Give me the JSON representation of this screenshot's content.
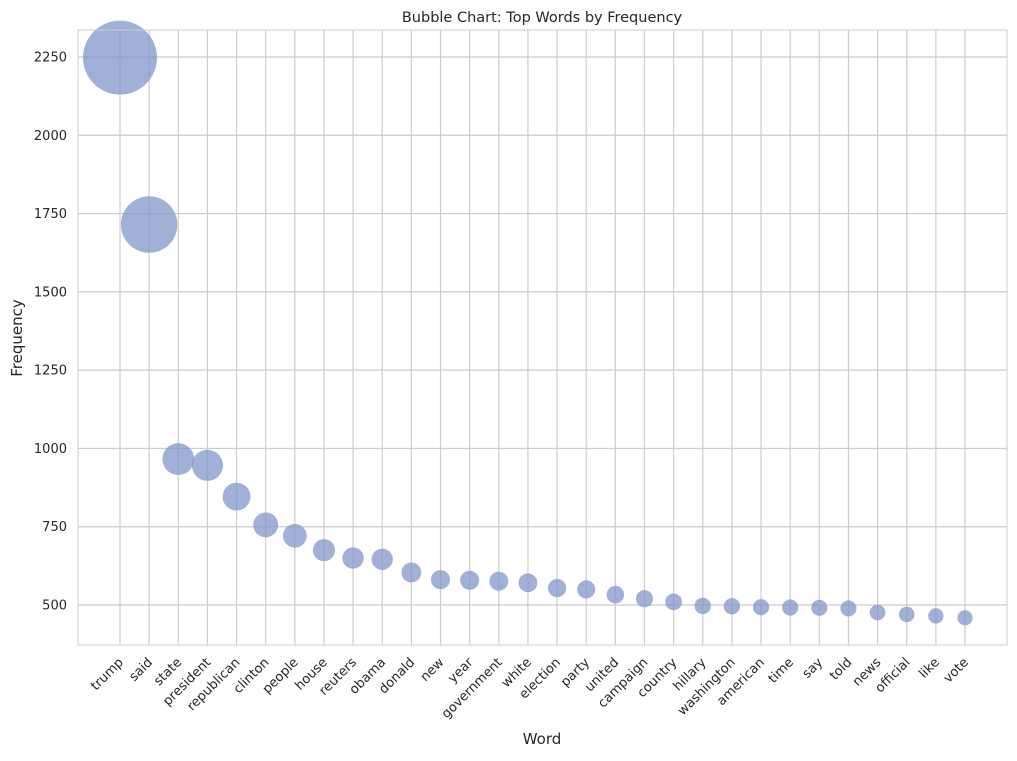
{
  "chart_data": {
    "type": "scatter",
    "title": "Bubble Chart: Top Words by Frequency",
    "xlabel": "Word",
    "ylabel": "Frequency",
    "ylim": [
      370,
      2340
    ],
    "yticks": [
      500,
      750,
      1000,
      1250,
      1500,
      1750,
      2000,
      2250
    ],
    "grid": true,
    "legend": "none",
    "marker_color": "#8196c8",
    "marker_opacity": 0.75,
    "categories": [
      "trump",
      "said",
      "state",
      "president",
      "republican",
      "clinton",
      "people",
      "house",
      "reuters",
      "obama",
      "donald",
      "new",
      "year",
      "government",
      "white",
      "election",
      "party",
      "united",
      "campaign",
      "country",
      "hillary",
      "washington",
      "american",
      "time",
      "say",
      "told",
      "news",
      "official",
      "like",
      "vote"
    ],
    "values": [
      2248,
      1715,
      966,
      946,
      846,
      756,
      721,
      675,
      650,
      646,
      604,
      581,
      579,
      576,
      571,
      554,
      550,
      533,
      520,
      510,
      497,
      496,
      493,
      492,
      491,
      489,
      476,
      470,
      465,
      459
    ]
  }
}
